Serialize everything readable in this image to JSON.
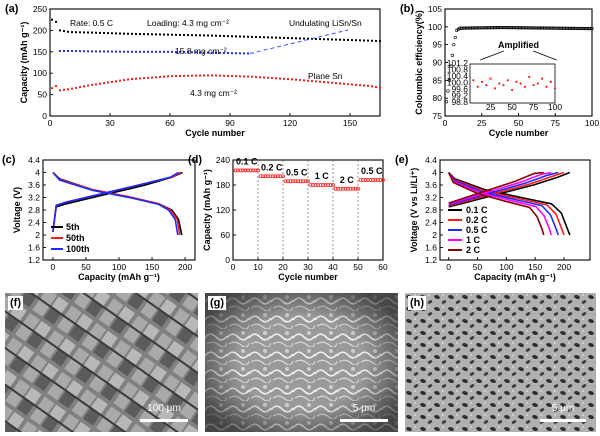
{
  "colors": {
    "black": "#000000",
    "red": "#ff1a1a",
    "blue": "#1a2cff",
    "magenta": "#ff00ff",
    "darkred": "#8b0000",
    "dashed": "#3a4dff",
    "sem_bg": "#7a7a7a"
  },
  "chart_data": [
    {
      "id": "a",
      "type": "scatter",
      "panel_label": "(a)",
      "xlabel": "Cycle number",
      "ylabel": "Capacity (mAh g⁻¹)",
      "xlim": [
        0,
        165
      ],
      "ylim": [
        0,
        250
      ],
      "xticks": [
        0,
        30,
        60,
        90,
        120,
        150
      ],
      "yticks": [
        0,
        50,
        100,
        150,
        200,
        250
      ],
      "annotations": {
        "rate": "Rate: 0.5 C",
        "loading_top": "Loading: 4.3 mg cm⁻²",
        "undulating": "Undulating LiSn/Sn",
        "loading_mid": "15.8 mg cm⁻²",
        "plane": "Plane Sn",
        "loading_bot": "4.3 mg cm⁻²"
      },
      "series": [
        {
          "name": "Undulating LiSn/Sn, 4.3 mg cm⁻²",
          "color": "#000000",
          "x": [
            1,
            3,
            5,
            10,
            20,
            40,
            60,
            80,
            100,
            120,
            140,
            160,
            165
          ],
          "y": [
            225,
            220,
            200,
            196,
            195,
            192,
            190,
            188,
            185,
            182,
            179,
            176,
            175
          ]
        },
        {
          "name": "15.8 mg cm⁻²",
          "color": "#1a2cff",
          "x": [
            5,
            10,
            20,
            40,
            60,
            80,
            100
          ],
          "y": [
            152,
            152,
            151,
            150,
            150,
            148,
            146
          ]
        },
        {
          "name": "Plane Sn",
          "color": "#ff1a1a",
          "x": [
            1,
            3,
            5,
            10,
            20,
            40,
            60,
            80,
            100,
            120,
            140,
            160,
            165
          ],
          "y": [
            65,
            70,
            60,
            63,
            72,
            86,
            93,
            95,
            92,
            86,
            78,
            70,
            66
          ]
        }
      ]
    },
    {
      "id": "b",
      "type": "scatter",
      "panel_label": "(b)",
      "xlabel": "Cycle number",
      "ylabel": "Coloumbic efficiency(%)",
      "xlim": [
        0,
        100
      ],
      "ylim": [
        75,
        105
      ],
      "xticks": [
        0,
        25,
        50,
        75,
        100
      ],
      "yticks": [
        75,
        80,
        85,
        90,
        95,
        100,
        105
      ],
      "annotations": {
        "amplified": "Amplified"
      },
      "series": [
        {
          "name": "CE",
          "color": "#000000",
          "x": [
            1,
            2,
            3,
            4,
            5,
            6,
            8,
            10,
            20,
            40,
            60,
            80,
            100
          ],
          "y": [
            79,
            82,
            85,
            89,
            92,
            95,
            99,
            99.6,
            99.7,
            99.8,
            99.7,
            99.6,
            99.5
          ]
        }
      ],
      "inset": {
        "xlim": [
          1,
          100
        ],
        "ylim": [
          98.8,
          101.2
        ],
        "xticks": [
          25,
          50,
          75,
          100
        ],
        "yticks": [
          98.8,
          99.2,
          99.6,
          100.0,
          100.4,
          100.8,
          101.2
        ],
        "color": "#ff1a1a",
        "x": [
          5,
          10,
          15,
          20,
          25,
          30,
          35,
          40,
          45,
          50,
          55,
          60,
          65,
          70,
          75,
          80,
          85,
          90,
          95,
          100
        ],
        "y": [
          100.2,
          99.8,
          100.1,
          99.9,
          100.3,
          99.7,
          100.0,
          99.9,
          100.2,
          99.6,
          100.1,
          100.0,
          99.8,
          100.4,
          99.9,
          100.0,
          100.3,
          99.8,
          100.1,
          99.7
        ]
      }
    },
    {
      "id": "c",
      "type": "line",
      "panel_label": "(c)",
      "xlabel": "Capacity (mAh g⁻¹)",
      "ylabel": "Voltage (V)",
      "xlim": [
        -15,
        215
      ],
      "ylim": [
        1.2,
        4.4
      ],
      "xticks": [
        0,
        50,
        100,
        150,
        200
      ],
      "yticks": [
        1.2,
        1.6,
        2.0,
        2.4,
        2.8,
        3.2,
        3.6,
        4.0,
        4.4
      ],
      "legend": [
        "5th",
        "50th",
        "100th"
      ],
      "series": [
        {
          "name": "5th",
          "color": "#000000",
          "charge": [
            [
              0,
              2.1
            ],
            [
              5,
              2.9
            ],
            [
              20,
              3.0
            ],
            [
              80,
              3.3
            ],
            [
              140,
              3.6
            ],
            [
              180,
              3.85
            ],
            [
              196,
              4.0
            ]
          ],
          "discharge": [
            [
              0,
              4.0
            ],
            [
              10,
              3.8
            ],
            [
              60,
              3.45
            ],
            [
              120,
              3.2
            ],
            [
              160,
              3.0
            ],
            [
              180,
              2.8
            ],
            [
              190,
              2.5
            ],
            [
              195,
              2.0
            ]
          ]
        },
        {
          "name": "50th",
          "color": "#ff1a1a",
          "charge": [
            [
              0,
              2.1
            ],
            [
              5,
              2.95
            ],
            [
              20,
              3.05
            ],
            [
              80,
              3.35
            ],
            [
              140,
              3.65
            ],
            [
              180,
              3.85
            ],
            [
              193,
              4.0
            ]
          ],
          "discharge": [
            [
              0,
              4.0
            ],
            [
              10,
              3.78
            ],
            [
              60,
              3.45
            ],
            [
              120,
              3.2
            ],
            [
              160,
              3.0
            ],
            [
              178,
              2.8
            ],
            [
              188,
              2.5
            ],
            [
              192,
              2.0
            ]
          ]
        },
        {
          "name": "100th",
          "color": "#1a2cff",
          "charge": [
            [
              0,
              2.1
            ],
            [
              5,
              2.95
            ],
            [
              20,
              3.05
            ],
            [
              80,
              3.35
            ],
            [
              140,
              3.65
            ],
            [
              178,
              3.85
            ],
            [
              190,
              4.0
            ]
          ],
          "discharge": [
            [
              0,
              4.0
            ],
            [
              10,
              3.76
            ],
            [
              60,
              3.43
            ],
            [
              120,
              3.18
            ],
            [
              160,
              2.98
            ],
            [
              175,
              2.8
            ],
            [
              185,
              2.5
            ],
            [
              189,
              2.0
            ]
          ]
        }
      ]
    },
    {
      "id": "d",
      "type": "scatter",
      "panel_label": "(d)",
      "xlabel": "Cycle number",
      "ylabel": "Capacity (mAh g⁻¹)",
      "xlim": [
        0,
        60
      ],
      "ylim": [
        0,
        240
      ],
      "xticks": [
        0,
        10,
        20,
        30,
        40,
        50,
        60
      ],
      "yticks": [
        0,
        60,
        120,
        180,
        240
      ],
      "separators": [
        10,
        20,
        30,
        40,
        50
      ],
      "rate_labels": [
        "0.1 C",
        "0.2 C",
        "0.5 C",
        "1 C",
        "2 C",
        "0.5 C"
      ],
      "color": "#ff1a1a",
      "segments": [
        {
          "from": 1,
          "to": 10,
          "value": 215
        },
        {
          "from": 11,
          "to": 20,
          "value": 201
        },
        {
          "from": 21,
          "to": 30,
          "value": 189
        },
        {
          "from": 31,
          "to": 40,
          "value": 180
        },
        {
          "from": 41,
          "to": 50,
          "value": 171
        },
        {
          "from": 51,
          "to": 60,
          "value": 192
        }
      ]
    },
    {
      "id": "e",
      "type": "line",
      "panel_label": "(e)",
      "xlabel": "Capacity (mAh g⁻¹)",
      "ylabel": "Voltage (V vs Li/Li⁺)",
      "xlim": [
        -15,
        245
      ],
      "ylim": [
        1.2,
        4.4
      ],
      "xticks": [
        0,
        50,
        100,
        150,
        200
      ],
      "yticks": [
        1.2,
        1.6,
        2.0,
        2.4,
        2.8,
        3.2,
        3.6,
        4.0,
        4.4
      ],
      "legend": [
        "0.1 C",
        "0.2 C",
        "0.5 C",
        "1 C",
        "2 C"
      ],
      "series": [
        {
          "name": "0.1 C",
          "color": "#000000",
          "cap": 210
        },
        {
          "name": "0.2 C",
          "color": "#ff1a1a",
          "cap": 200
        },
        {
          "name": "0.5 C",
          "color": "#1a2cff",
          "cap": 190
        },
        {
          "name": "1 C",
          "color": "#ff00ff",
          "cap": 178
        },
        {
          "name": "2 C",
          "color": "#8b0000",
          "cap": 165
        }
      ]
    }
  ],
  "sem_images": [
    {
      "label": "(f)",
      "scale": "100 μm"
    },
    {
      "label": "(g)",
      "scale": "5 μm"
    },
    {
      "label": "(h)",
      "scale": "5 μm"
    }
  ]
}
